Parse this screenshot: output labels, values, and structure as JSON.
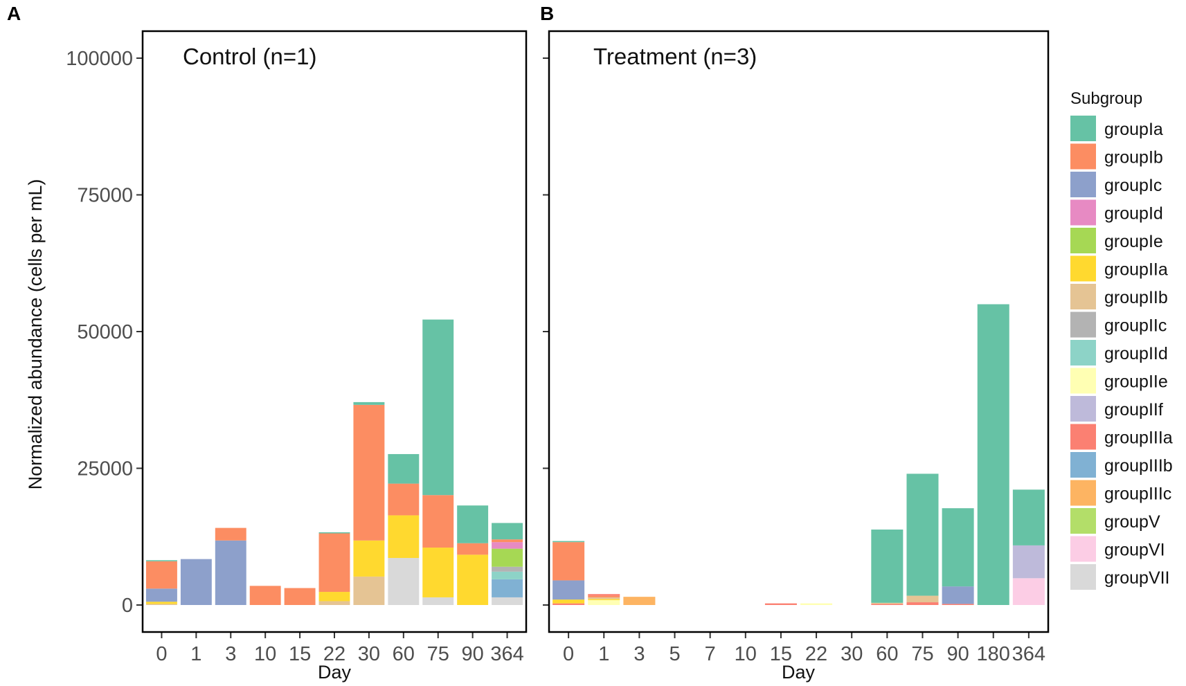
{
  "legend": {
    "title": "Subgroup",
    "items": [
      {
        "key": "groupIa",
        "color": "#66C2A5"
      },
      {
        "key": "groupIb",
        "color": "#FC8D62"
      },
      {
        "key": "groupIc",
        "color": "#8DA0CB"
      },
      {
        "key": "groupId",
        "color": "#E78AC3"
      },
      {
        "key": "groupIe",
        "color": "#A6D854"
      },
      {
        "key": "groupIIa",
        "color": "#FFD92F"
      },
      {
        "key": "groupIIb",
        "color": "#E5C494"
      },
      {
        "key": "groupIIc",
        "color": "#B3B3B3"
      },
      {
        "key": "groupIId",
        "color": "#8DD3C7"
      },
      {
        "key": "groupIIe",
        "color": "#FFFFB3"
      },
      {
        "key": "groupIIf",
        "color": "#BEBADA"
      },
      {
        "key": "groupIIIa",
        "color": "#FB8072"
      },
      {
        "key": "groupIIIb",
        "color": "#80B1D3"
      },
      {
        "key": "groupIIIc",
        "color": "#FDB462"
      },
      {
        "key": "groupV",
        "color": "#B3DE69"
      },
      {
        "key": "groupVI",
        "color": "#FCCDE5"
      },
      {
        "key": "groupVII",
        "color": "#D9D9D9"
      }
    ]
  },
  "chart_data": [
    {
      "type": "bar",
      "stacked": true,
      "panel_label": "A",
      "title": "Control (n=1)",
      "xlabel": "Day",
      "ylabel": "Normalized abundance (cells per mL)",
      "ylim": [
        0,
        105000
      ],
      "yticks": [
        0,
        25000,
        50000,
        75000,
        100000
      ],
      "show_ytick_labels": true,
      "categories": [
        "0",
        "1",
        "3",
        "10",
        "15",
        "22",
        "30",
        "60",
        "75",
        "90",
        "364"
      ],
      "stacks": [
        [
          {
            "group": "groupIIb",
            "value": 200
          },
          {
            "group": "groupIIa",
            "value": 400
          },
          {
            "group": "groupIc",
            "value": 2400
          },
          {
            "group": "groupIb",
            "value": 5000
          },
          {
            "group": "groupIa",
            "value": 200
          }
        ],
        [
          {
            "group": "groupIc",
            "value": 8400
          }
        ],
        [
          {
            "group": "groupIc",
            "value": 11800
          },
          {
            "group": "groupIb",
            "value": 2300
          }
        ],
        [
          {
            "group": "groupIb",
            "value": 3500
          }
        ],
        [
          {
            "group": "groupIb",
            "value": 3100
          }
        ],
        [
          {
            "group": "groupIIb",
            "value": 700
          },
          {
            "group": "groupIIa",
            "value": 1700
          },
          {
            "group": "groupIb",
            "value": 10700
          },
          {
            "group": "groupIa",
            "value": 200
          }
        ],
        [
          {
            "group": "groupIIb",
            "value": 5200
          },
          {
            "group": "groupIIa",
            "value": 6600
          },
          {
            "group": "groupIb",
            "value": 24800
          },
          {
            "group": "groupIa",
            "value": 500
          }
        ],
        [
          {
            "group": "groupVII",
            "value": 8600
          },
          {
            "group": "groupIIa",
            "value": 7800
          },
          {
            "group": "groupIb",
            "value": 5800
          },
          {
            "group": "groupIa",
            "value": 5400
          }
        ],
        [
          {
            "group": "groupVII",
            "value": 1400
          },
          {
            "group": "groupIIa",
            "value": 9100
          },
          {
            "group": "groupIb",
            "value": 9600
          },
          {
            "group": "groupIa",
            "value": 32100
          }
        ],
        [
          {
            "group": "groupIIa",
            "value": 9200
          },
          {
            "group": "groupIb",
            "value": 2100
          },
          {
            "group": "groupIa",
            "value": 6900
          }
        ],
        [
          {
            "group": "groupVII",
            "value": 1400
          },
          {
            "group": "groupIIIb",
            "value": 3300
          },
          {
            "group": "groupIId",
            "value": 1400
          },
          {
            "group": "groupIIc",
            "value": 900
          },
          {
            "group": "groupIe",
            "value": 3300
          },
          {
            "group": "groupId",
            "value": 1200
          },
          {
            "group": "groupIb",
            "value": 500
          },
          {
            "group": "groupIa",
            "value": 3000
          }
        ]
      ]
    },
    {
      "type": "bar",
      "stacked": true,
      "panel_label": "B",
      "title": "Treatment (n=3)",
      "xlabel": "Day",
      "ylabel": "",
      "ylim": [
        0,
        105000
      ],
      "yticks": [
        0,
        25000,
        50000,
        75000,
        100000
      ],
      "show_ytick_labels": false,
      "categories": [
        "0",
        "1",
        "3",
        "5",
        "7",
        "10",
        "15",
        "22",
        "30",
        "60",
        "75",
        "90",
        "180",
        "364"
      ],
      "stacks": [
        [
          {
            "group": "groupIIIa",
            "value": 300
          },
          {
            "group": "groupIIa",
            "value": 700
          },
          {
            "group": "groupIc",
            "value": 3500
          },
          {
            "group": "groupIb",
            "value": 7000
          },
          {
            "group": "groupIa",
            "value": 200
          }
        ],
        [
          {
            "group": "groupIIe",
            "value": 900
          },
          {
            "group": "groupIIa",
            "value": 200
          },
          {
            "group": "groupIIb",
            "value": 300
          },
          {
            "group": "groupIb",
            "value": 300
          },
          {
            "group": "groupIIIa",
            "value": 300
          }
        ],
        [
          {
            "group": "groupIIIc",
            "value": 1500
          }
        ],
        [],
        [],
        [],
        [
          {
            "group": "groupIIIa",
            "value": 300
          }
        ],
        [
          {
            "group": "groupIIe",
            "value": 300
          }
        ],
        [],
        [
          {
            "group": "groupIIIa",
            "value": 200
          },
          {
            "group": "groupIIb",
            "value": 200
          },
          {
            "group": "groupIa",
            "value": 13400
          }
        ],
        [
          {
            "group": "groupIIIa",
            "value": 500
          },
          {
            "group": "groupIIb",
            "value": 1200
          },
          {
            "group": "groupIa",
            "value": 22300
          }
        ],
        [
          {
            "group": "groupIIIa",
            "value": 200
          },
          {
            "group": "groupIc",
            "value": 3200
          },
          {
            "group": "groupIa",
            "value": 14300
          }
        ],
        [
          {
            "group": "groupIa",
            "value": 55000
          }
        ],
        [
          {
            "group": "groupVI",
            "value": 4900
          },
          {
            "group": "groupIIf",
            "value": 6000
          },
          {
            "group": "groupIa",
            "value": 10200
          }
        ]
      ]
    }
  ]
}
